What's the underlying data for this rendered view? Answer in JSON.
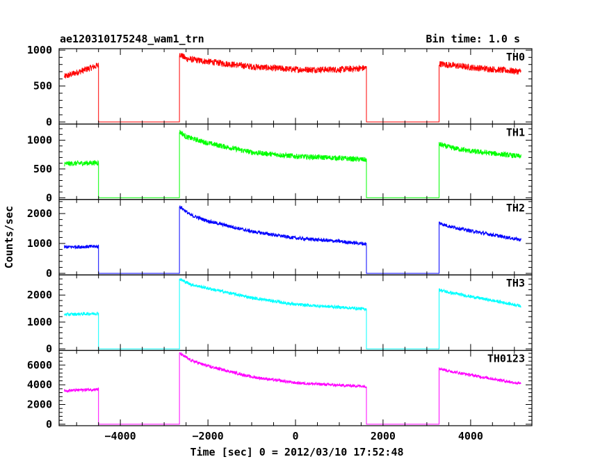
{
  "header": {
    "title": "ae120310175248_wam1_trn",
    "bin_time": "Bin time: 1.0 s"
  },
  "axes": {
    "ylabel": "Counts/sec",
    "xlabel": "Time [sec] 0 = 2012/03/10 17:52:48"
  },
  "chart_data": {
    "type": "line",
    "x_range": [
      -5400,
      5400
    ],
    "x_ticks": [
      -4000,
      -2000,
      0,
      2000,
      4000
    ],
    "x_tick_labels": [
      "−4000",
      "−2000",
      "0",
      "2000",
      "4000"
    ],
    "gaps": [
      [
        -4500,
        -2650
      ],
      [
        1620,
        3280
      ]
    ],
    "bin_time_s": 1.0,
    "panels": [
      {
        "name": "TH0",
        "color": "#ff0000",
        "ylim": [
          -30,
          1020
        ],
        "yticks": [
          0,
          500,
          1000
        ],
        "noise": 45,
        "segments": [
          {
            "x": [
              -5280,
              -4500
            ],
            "y": [
              630,
              790
            ]
          },
          {
            "x": [
              -2650,
              -2500,
              -2000,
              -1000,
              0,
              1000,
              1620
            ],
            "y": [
              950,
              880,
              840,
              770,
              730,
              730,
              750
            ]
          },
          {
            "x": [
              3280,
              4000,
              5150
            ],
            "y": [
              810,
              760,
              700
            ]
          }
        ]
      },
      {
        "name": "TH1",
        "color": "#00ff00",
        "ylim": [
          -30,
          1280
        ],
        "yticks": [
          0,
          500,
          1000
        ],
        "noise": 45,
        "segments": [
          {
            "x": [
              -5280,
              -4500
            ],
            "y": [
              590,
              610
            ]
          },
          {
            "x": [
              -2650,
              -2500,
              -2000,
              -1000,
              0,
              1000,
              1620
            ],
            "y": [
              1150,
              1060,
              950,
              790,
              720,
              690,
              660
            ]
          },
          {
            "x": [
              3280,
              3500,
              4000,
              5150
            ],
            "y": [
              930,
              880,
              810,
              720
            ]
          }
        ]
      },
      {
        "name": "TH2",
        "color": "#0000ff",
        "ylim": [
          -50,
          2470
        ],
        "yticks": [
          0,
          1000,
          2000
        ],
        "noise": 60,
        "segments": [
          {
            "x": [
              -5280,
              -4500
            ],
            "y": [
              880,
              900
            ]
          },
          {
            "x": [
              -2650,
              -2400,
              -2000,
              -1000,
              0,
              1000,
              1620
            ],
            "y": [
              2250,
              1950,
              1750,
              1400,
              1180,
              1070,
              980
            ]
          },
          {
            "x": [
              3280,
              3500,
              4000,
              5150
            ],
            "y": [
              1680,
              1580,
              1420,
              1120
            ]
          }
        ]
      },
      {
        "name": "TH3",
        "color": "#00ffff",
        "ylim": [
          -50,
          2750
        ],
        "yticks": [
          0,
          1000,
          2000
        ],
        "noise": 60,
        "segments": [
          {
            "x": [
              -5280,
              -4500
            ],
            "y": [
              1280,
              1320
            ]
          },
          {
            "x": [
              -2650,
              -2400,
              -2000,
              -1000,
              0,
              1000,
              1620
            ],
            "y": [
              2600,
              2400,
              2250,
              1900,
              1650,
              1550,
              1480
            ]
          },
          {
            "x": [
              3280,
              3500,
              4000,
              5150
            ],
            "y": [
              2200,
              2100,
              1950,
              1600
            ]
          }
        ]
      },
      {
        "name": "TH0123",
        "color": "#ff00ff",
        "ylim": [
          -150,
          7500
        ],
        "yticks": [
          0,
          2000,
          4000,
          6000
        ],
        "noise": 150,
        "segments": [
          {
            "x": [
              -5280,
              -4500
            ],
            "y": [
              3400,
              3550
            ]
          },
          {
            "x": [
              -2650,
              -2400,
              -2000,
              -1000,
              0,
              1000,
              1620
            ],
            "y": [
              7200,
              6500,
              5900,
              4800,
              4200,
              3950,
              3850
            ]
          },
          {
            "x": [
              3280,
              3500,
              4000,
              5150
            ],
            "y": [
              5700,
              5400,
              5000,
              4100
            ]
          }
        ]
      }
    ]
  }
}
